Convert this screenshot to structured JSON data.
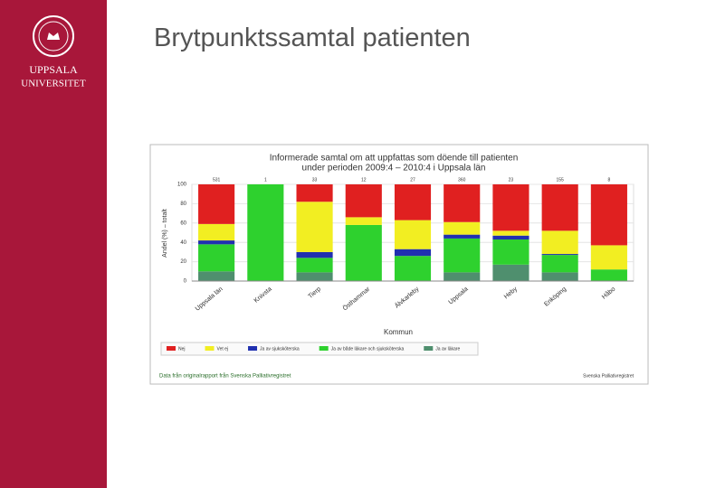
{
  "slide": {
    "title": "Brytpunktssamtal patienten",
    "logo_line1": "UPPSALA",
    "logo_line2": "UNIVERSITET"
  },
  "chart_data": {
    "type": "stacked_bar",
    "title_line1": "Informerade samtal om att uppfattas som döende till patienten",
    "title_line2": "under perioden 2009:4 – 2010:4 i Uppsala län",
    "y_label": "Andel (%) – totalt",
    "x_label": "Kommun",
    "categories": [
      "Uppsala län",
      "Knivsta",
      "Tierp",
      "Östhammar",
      "Älvkarleby",
      "Uppsala",
      "Heby",
      "Enköping",
      "Håbo"
    ],
    "n_labels": [
      "531",
      "1",
      "33",
      "12",
      "27",
      "360",
      "23",
      "155",
      "8"
    ],
    "series": [
      {
        "name": "Nej",
        "color": "#e02020",
        "values": [
          41,
          0,
          18,
          34,
          37,
          39,
          48,
          48,
          63
        ]
      },
      {
        "name": "Vet ej",
        "color": "#f2ee22",
        "values": [
          17,
          0,
          52,
          8,
          30,
          13,
          5,
          24,
          25
        ]
      },
      {
        "name": "Ja av sjuksköterska",
        "color": "#2030b0",
        "values": [
          4,
          0,
          6,
          0,
          7,
          4,
          4,
          1,
          0
        ]
      },
      {
        "name": "Ja av både läkare och sjuksköterska",
        "color": "#2ed12e",
        "values": [
          28,
          100,
          15,
          58,
          26,
          35,
          26,
          18,
          12
        ]
      },
      {
        "name": "Ja av läkare",
        "color": "#4f8f6e",
        "values": [
          10,
          0,
          9,
          0,
          0,
          9,
          17,
          9,
          0
        ]
      }
    ],
    "ylim": [
      0,
      100
    ],
    "yticks": [
      0,
      20,
      40,
      60,
      80,
      100
    ],
    "grid": true,
    "source": "Data från originalrapport från Svenska Palliativregistret",
    "credit": "Svenska Palliativregistret"
  }
}
